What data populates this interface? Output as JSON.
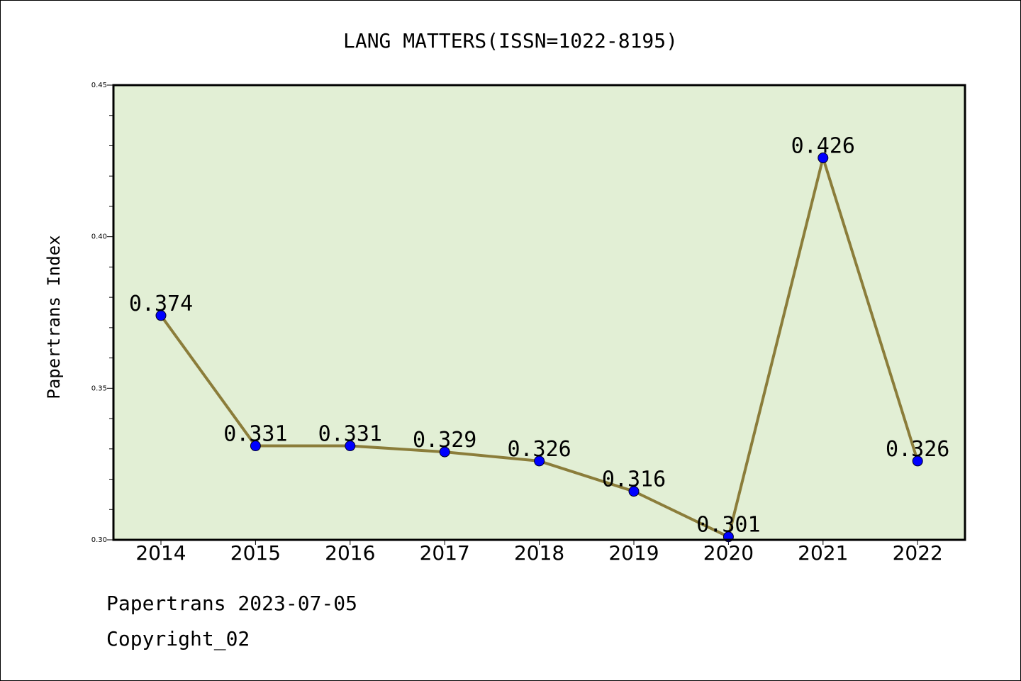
{
  "chart_data": {
    "type": "line",
    "title": "LANG MATTERS(ISSN=1022-8195)",
    "xlabel": "",
    "ylabel": "Papertrans Index",
    "categories": [
      "2014",
      "2015",
      "2016",
      "2017",
      "2018",
      "2019",
      "2020",
      "2021",
      "2022"
    ],
    "series": [
      {
        "values": [
          0.374,
          0.331,
          0.331,
          0.329,
          0.326,
          0.316,
          0.301,
          0.426,
          0.326
        ],
        "labels": [
          "0.374",
          "0.331",
          "0.331",
          "0.329",
          "0.326",
          "0.316",
          "0.301",
          "0.426",
          "0.326"
        ],
        "line_color": "#8b7d3a",
        "marker_color": "#0000ff"
      }
    ],
    "ylim": [
      0.3,
      0.45
    ],
    "yticks": [
      "0.30",
      "0.35",
      "0.40",
      "0.45"
    ],
    "grid": false,
    "plot_background": "#e2efd5"
  },
  "footer": {
    "line1": "Papertrans 2023-07-05",
    "line2": "Copyright_02"
  }
}
